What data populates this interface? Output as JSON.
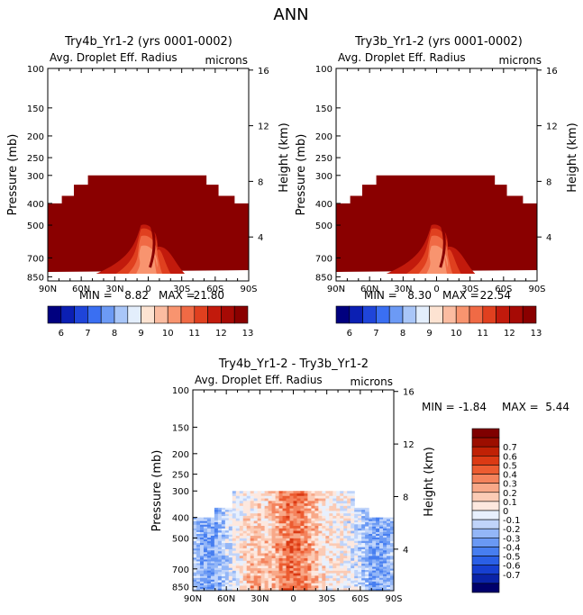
{
  "page_title": "ANN",
  "colors": {
    "frame": "#000000",
    "abs_colorbar": [
      "#00007f",
      "#0b1fb3",
      "#1f45d9",
      "#3a6ff2",
      "#6c9af5",
      "#a9c6f8",
      "#e3eefc",
      "#fde3d2",
      "#fbbca1",
      "#f8946f",
      "#f06a45",
      "#e0401f",
      "#c21a0c",
      "#a60a05",
      "#8a0000"
    ],
    "diff_colorbar": [
      "#00006b",
      "#0a23a8",
      "#163fd1",
      "#2a5fe6",
      "#477ef0",
      "#6a99f4",
      "#93b6f7",
      "#c0d4fa",
      "#e8f0fd",
      "#fde8df",
      "#fbcbb5",
      "#f8a888",
      "#f4835c",
      "#ec5c31",
      "#db3a14",
      "#c02105",
      "#9c0e00",
      "#7f0000"
    ]
  },
  "chart_data": [
    {
      "type": "heatmap",
      "title": "Try4b_Yr1-2 (yrs 0001-0002)",
      "subtitle_left": "Avg. Droplet Eff. Radius",
      "subtitle_right": "microns",
      "xlabel": "",
      "ylabel": "Pressure (mb)",
      "ylabel_right": "Height (km)",
      "x_ticks": [
        "90N",
        "60N",
        "30N",
        "0",
        "30S",
        "60S",
        "90S"
      ],
      "y_ticks": [
        "100",
        "150",
        "200",
        "250",
        "300",
        "400",
        "500",
        "700",
        "850"
      ],
      "y_ticks_right": [
        "16",
        "12",
        "8",
        "4"
      ],
      "ylim": [
        1000,
        100
      ],
      "min_label": "MIN =",
      "min_value": "8.82",
      "max_label": "MAX =",
      "max_value": "21.80",
      "colorbar_labels": [
        "6",
        "7",
        "8",
        "9",
        "10",
        "11",
        "12",
        "13"
      ]
    },
    {
      "type": "heatmap",
      "title": "Try3b_Yr1-2 (yrs 0001-0002)",
      "subtitle_left": "Avg. Droplet Eff. Radius",
      "subtitle_right": "microns",
      "xlabel": "",
      "ylabel": "Pressure (mb)",
      "ylabel_right": "Height (km)",
      "x_ticks": [
        "90N",
        "60N",
        "30N",
        "0",
        "30S",
        "60S",
        "90S"
      ],
      "y_ticks": [
        "100",
        "150",
        "200",
        "250",
        "300",
        "400",
        "500",
        "700",
        "850"
      ],
      "y_ticks_right": [
        "16",
        "12",
        "8",
        "4"
      ],
      "ylim": [
        1000,
        100
      ],
      "min_label": "MIN =",
      "min_value": "8.30",
      "max_label": "MAX =",
      "max_value": "22.54",
      "colorbar_labels": [
        "6",
        "7",
        "8",
        "9",
        "10",
        "11",
        "12",
        "13"
      ]
    },
    {
      "type": "heatmap",
      "title": "Try4b_Yr1-2 - Try3b_Yr1-2",
      "subtitle_left": "Avg. Droplet Eff. Radius",
      "subtitle_right": "microns",
      "xlabel": "",
      "ylabel": "Pressure (mb)",
      "ylabel_right": "Height (km)",
      "x_ticks": [
        "90N",
        "60N",
        "30N",
        "0",
        "30S",
        "60S",
        "90S"
      ],
      "y_ticks": [
        "100",
        "150",
        "200",
        "250",
        "300",
        "400",
        "500",
        "700",
        "850"
      ],
      "y_ticks_right": [
        "16",
        "12",
        "8",
        "4"
      ],
      "ylim": [
        1000,
        100
      ],
      "min_label": "MIN =",
      "min_value": "-1.84",
      "max_label": "MAX =",
      "max_value": "5.44",
      "colorbar_labels": [
        "0.7",
        "0.6",
        "0.5",
        "0.4",
        "0.3",
        "0.2",
        "0.1",
        "0",
        "-0.1",
        "-0.2",
        "-0.3",
        "-0.4",
        "-0.5",
        "-0.6",
        "-0.7"
      ]
    }
  ]
}
